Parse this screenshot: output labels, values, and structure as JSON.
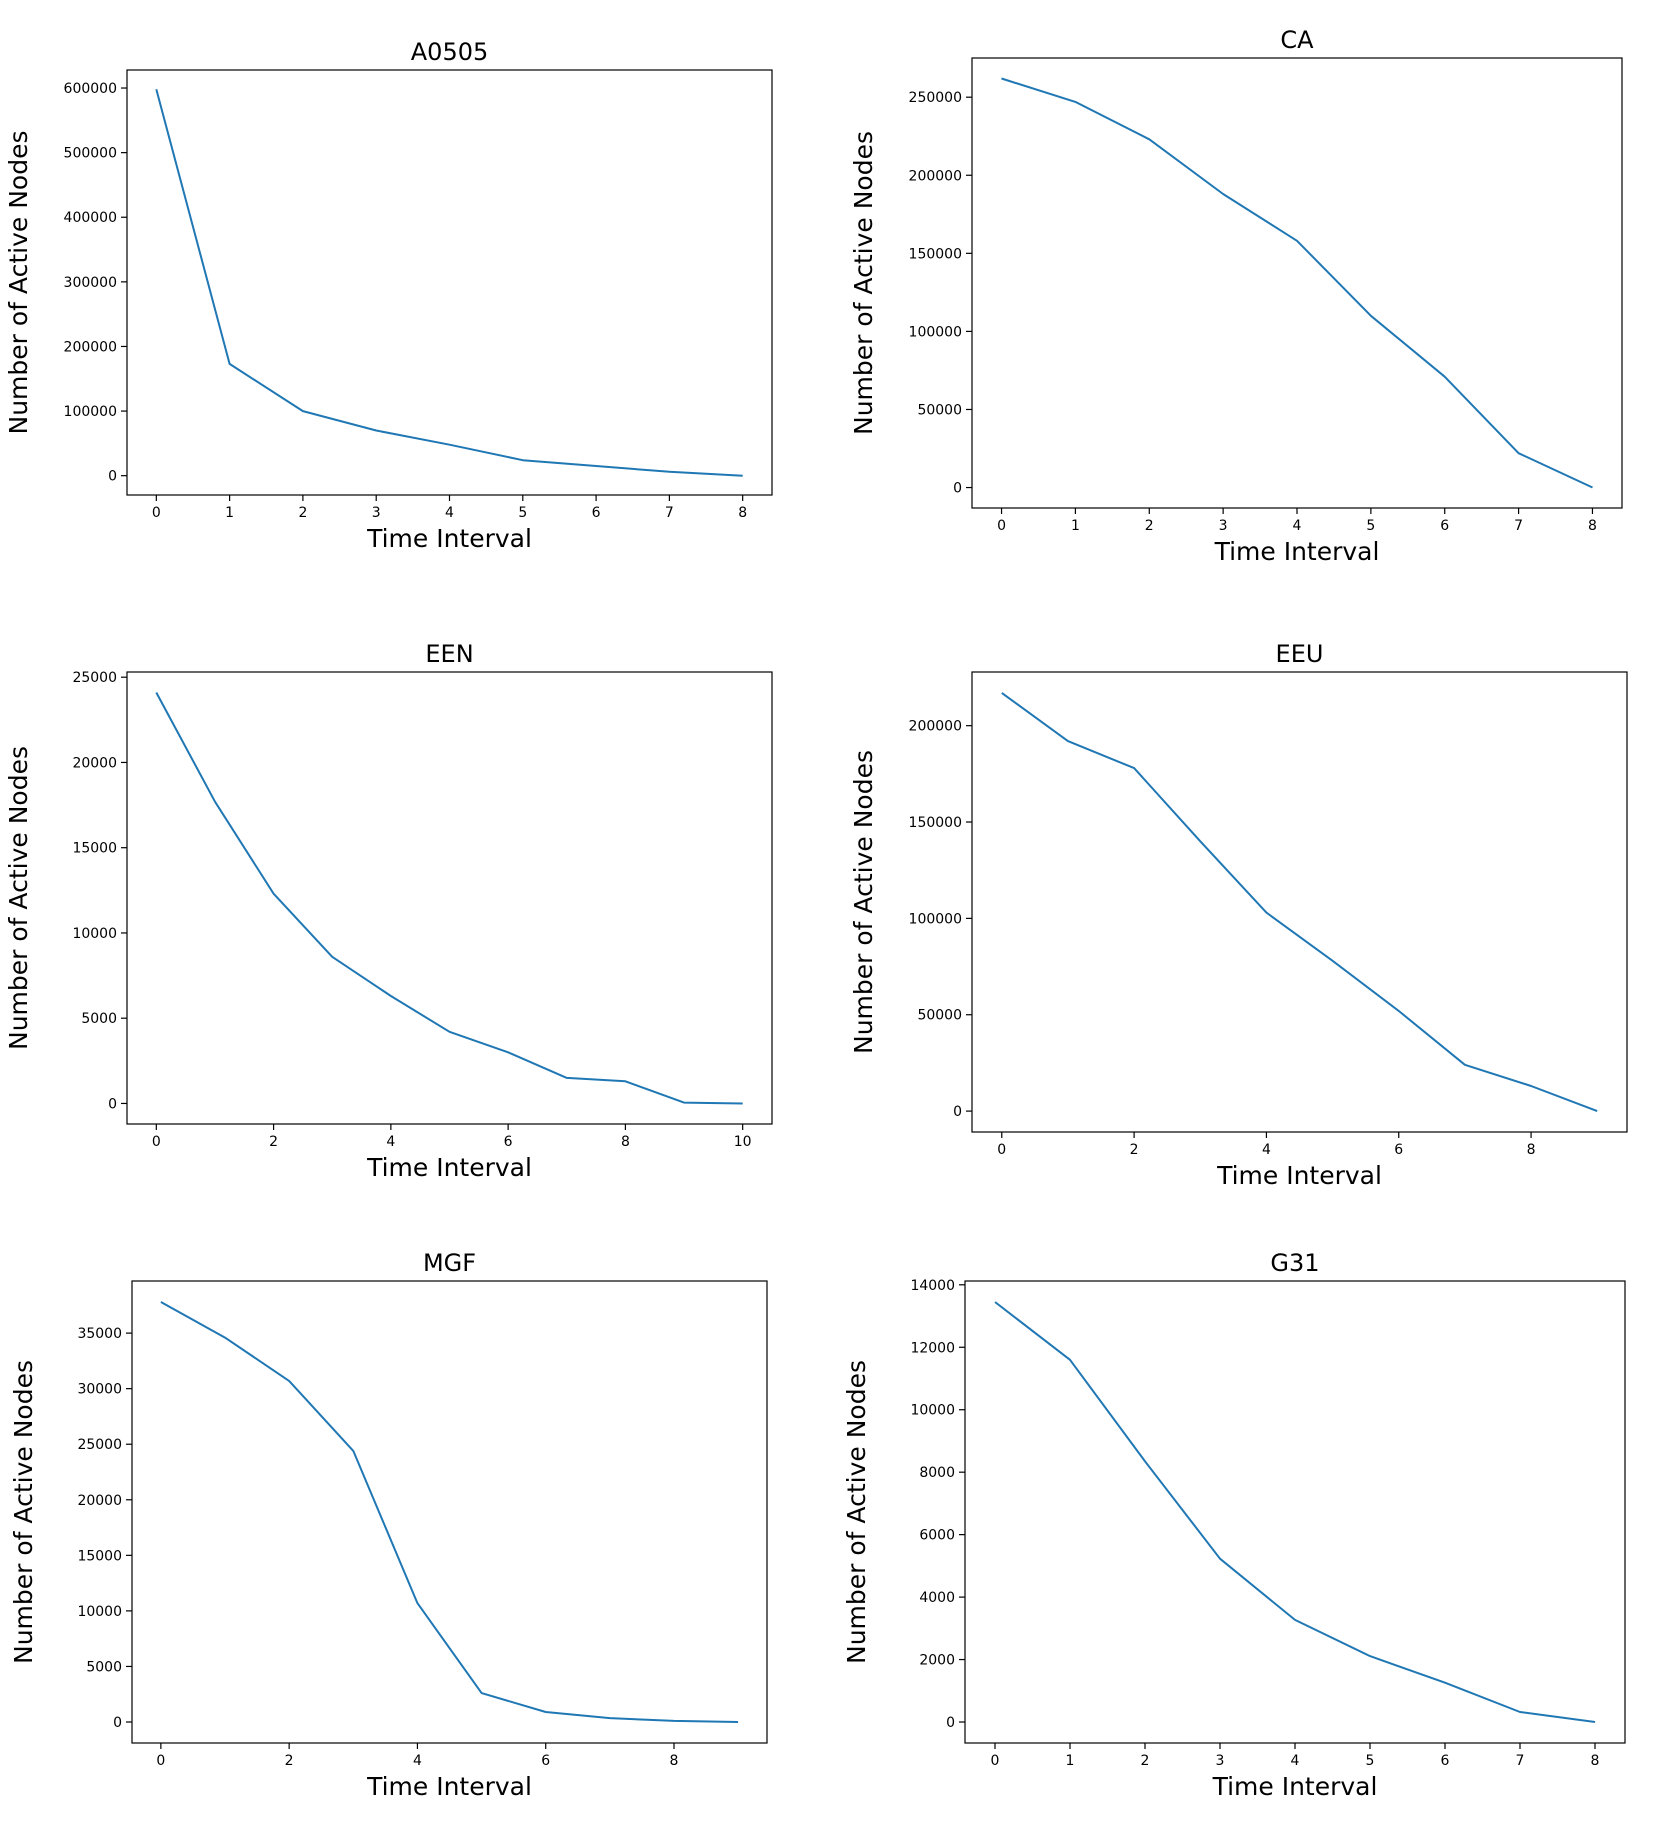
{
  "chart_data": [
    {
      "type": "line",
      "title": "A0505",
      "xlabel": "Time Interval",
      "ylabel": "Number of Active Nodes",
      "x": [
        0,
        1,
        2,
        3,
        4,
        5,
        6,
        7,
        8
      ],
      "series": [
        {
          "name": "A0505",
          "values": [
            598000,
            173000,
            100000,
            70000,
            48000,
            24000,
            15000,
            6000,
            0
          ],
          "color": "#1f77b4"
        }
      ],
      "xlim": [
        -0.4,
        8.4
      ],
      "ylim": [
        -29900,
        627900
      ],
      "xticks": [
        0,
        1,
        2,
        3,
        4,
        5,
        6,
        7,
        8
      ],
      "yticks": [
        0,
        100000,
        200000,
        300000,
        400000,
        500000,
        600000
      ]
    },
    {
      "type": "line",
      "title": "CA",
      "xlabel": "Time Interval",
      "ylabel": "Number of Active Nodes",
      "x": [
        0,
        1,
        2,
        3,
        4,
        5,
        6,
        7,
        8
      ],
      "series": [
        {
          "name": "CA",
          "values": [
            262000,
            247000,
            223000,
            188000,
            158000,
            110000,
            71000,
            22000,
            0
          ],
          "color": "#1f77b4"
        }
      ],
      "xlim": [
        -0.4,
        8.4
      ],
      "ylim": [
        -13100,
        275100
      ],
      "xticks": [
        0,
        1,
        2,
        3,
        4,
        5,
        6,
        7,
        8
      ],
      "yticks": [
        0,
        50000,
        100000,
        150000,
        200000,
        250000
      ]
    },
    {
      "type": "line",
      "title": "EEN",
      "xlabel": "Time Interval",
      "ylabel": "Number of Active Nodes",
      "x": [
        0,
        1,
        2,
        3,
        4,
        5,
        6,
        7,
        8,
        9,
        10
      ],
      "series": [
        {
          "name": "EEN",
          "values": [
            24100,
            17700,
            12300,
            8600,
            6300,
            4200,
            3000,
            1500,
            1300,
            50,
            0
          ],
          "color": "#1f77b4"
        }
      ],
      "xlim": [
        -0.5,
        10.5
      ],
      "ylim": [
        -1205,
        25305
      ],
      "xticks": [
        0,
        2,
        4,
        6,
        8,
        10
      ],
      "yticks": [
        0,
        5000,
        10000,
        15000,
        20000,
        25000
      ]
    },
    {
      "type": "line",
      "title": "EEU",
      "xlabel": "Time Interval",
      "ylabel": "Number of Active Nodes",
      "x": [
        0,
        1,
        2,
        3,
        4,
        5,
        6,
        7,
        8,
        9
      ],
      "series": [
        {
          "name": "EEU",
          "values": [
            217000,
            192000,
            178000,
            140000,
            103000,
            78000,
            52000,
            24000,
            13000,
            0
          ],
          "color": "#1f77b4"
        }
      ],
      "xlim": [
        -0.45,
        9.45
      ],
      "ylim": [
        -10850,
        227850
      ],
      "xticks": [
        0,
        2,
        4,
        6,
        8
      ],
      "yticks": [
        0,
        50000,
        100000,
        150000,
        200000
      ]
    },
    {
      "type": "line",
      "title": "MGF",
      "xlabel": "Time Interval",
      "ylabel": "Number of Active Nodes",
      "x": [
        0,
        1,
        2,
        3,
        4,
        5,
        6,
        7,
        8,
        9
      ],
      "series": [
        {
          "name": "MGF",
          "values": [
            37800,
            34600,
            30700,
            24400,
            10700,
            2600,
            900,
            350,
            100,
            0
          ],
          "color": "#1f77b4"
        }
      ],
      "xlim": [
        -0.45,
        9.45
      ],
      "ylim": [
        -1890,
        39690
      ],
      "xticks": [
        0,
        2,
        4,
        6,
        8
      ],
      "yticks": [
        0,
        5000,
        10000,
        15000,
        20000,
        25000,
        30000,
        35000
      ]
    },
    {
      "type": "line",
      "title": "G31",
      "xlabel": "Time Interval",
      "ylabel": "Number of Active Nodes",
      "x": [
        0,
        1,
        2,
        3,
        4,
        5,
        6,
        7,
        8
      ],
      "series": [
        {
          "name": "G31",
          "values": [
            13450,
            11600,
            8350,
            5230,
            3270,
            2110,
            1260,
            320,
            0
          ],
          "color": "#1f77b4"
        }
      ],
      "xlim": [
        -0.4,
        8.4
      ],
      "ylim": [
        -672,
        14122
      ],
      "xticks": [
        0,
        1,
        2,
        3,
        4,
        5,
        6,
        7,
        8
      ],
      "yticks": [
        0,
        2000,
        4000,
        6000,
        8000,
        10000,
        12000,
        14000
      ]
    }
  ]
}
